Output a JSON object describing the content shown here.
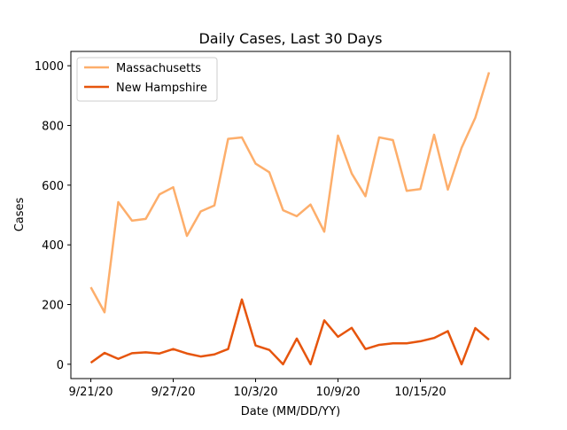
{
  "chart_data": {
    "type": "line",
    "title": "Daily Cases, Last 30 Days",
    "xlabel": "Date (MM/DD/YY)",
    "ylabel": "Cases",
    "ylim": [
      -48,
      1048
    ],
    "x_tick_labels": [
      "9/21/20",
      "9/27/20",
      "10/3/20",
      "10/9/20",
      "10/15/20"
    ],
    "x_tick_days": [
      0,
      6,
      12,
      18,
      24
    ],
    "y_ticks": [
      0,
      200,
      400,
      600,
      800,
      1000
    ],
    "legend_position": "top-left",
    "grid": false,
    "x": [
      "9/21/20",
      "9/22/20",
      "9/23/20",
      "9/24/20",
      "9/25/20",
      "9/26/20",
      "9/27/20",
      "9/28/20",
      "9/29/20",
      "9/30/20",
      "10/1/20",
      "10/2/20",
      "10/3/20",
      "10/4/20",
      "10/5/20",
      "10/6/20",
      "10/7/20",
      "10/8/20",
      "10/9/20",
      "10/10/20",
      "10/11/20",
      "10/12/20",
      "10/13/20",
      "10/14/20",
      "10/15/20",
      "10/16/20",
      "10/17/20",
      "10/18/20",
      "10/19/20",
      "10/20/20"
    ],
    "series": [
      {
        "name": "Massachusetts",
        "color": "#fdae6b",
        "values": [
          258,
          174,
          543,
          481,
          487,
          569,
          593,
          430,
          512,
          532,
          755,
          760,
          672,
          643,
          516,
          496,
          535,
          444,
          766,
          639,
          563,
          760,
          751,
          581,
          587,
          769,
          585,
          725,
          826,
          978
        ]
      },
      {
        "name": "New Hampshire",
        "color": "#e6550d",
        "values": [
          5,
          38,
          18,
          37,
          40,
          36,
          51,
          36,
          26,
          33,
          51,
          217,
          63,
          48,
          0,
          86,
          0,
          147,
          92,
          122,
          51,
          65,
          70,
          70,
          77,
          88,
          111,
          0,
          121,
          82
        ]
      }
    ]
  }
}
